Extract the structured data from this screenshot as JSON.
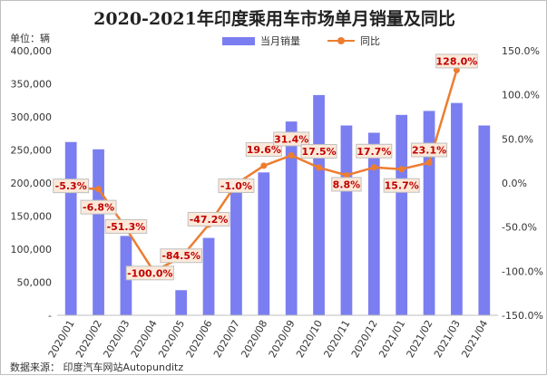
{
  "chart_data": {
    "type": "bar",
    "title": "2020-2021年印度乘用车市场单月销量及同比",
    "unit_label": "单位：辆",
    "source_label": "数据来源：  印度汽车网站Autopunditz",
    "categories": [
      "2020/01",
      "2020/02",
      "2020/03",
      "2020/04",
      "2020/05",
      "2020/06",
      "2020/07",
      "2020/08",
      "2020/09",
      "2020/10",
      "2020/11",
      "2020/12",
      "2021/01",
      "2021/02",
      "2021/03",
      "2021/04"
    ],
    "series": [
      {
        "name": "当月销量",
        "type": "bar",
        "axis": "left",
        "values": [
          262000,
          251000,
          120000,
          0,
          38000,
          117000,
          189000,
          216000,
          293000,
          333000,
          287000,
          276000,
          303000,
          309000,
          321000,
          287000
        ]
      },
      {
        "name": "同比",
        "type": "line",
        "axis": "right",
        "values": [
          -5.3,
          -6.8,
          -51.3,
          -100.0,
          -84.5,
          -47.2,
          -1.0,
          19.6,
          31.4,
          17.5,
          8.8,
          17.7,
          15.7,
          23.1,
          128.0,
          null
        ],
        "labels": [
          "-5.3%",
          "-6.8%",
          "-51.3%",
          "-100.0%",
          "-84.5%",
          "-47.2%",
          "-1.0%",
          "19.6%",
          "31.4%",
          "17.5%",
          "8.8%",
          "17.7%",
          "15.7%",
          "23.1%",
          "128.0%",
          ""
        ]
      }
    ],
    "y_left": {
      "min": 0,
      "max": 400000,
      "ticks": [
        0,
        50000,
        100000,
        150000,
        200000,
        250000,
        300000,
        350000,
        400000
      ],
      "tick_labels": [
        "-",
        "50,000",
        "100,000",
        "150,000",
        "200,000",
        "250,000",
        "300,000",
        "350,000",
        "400,000"
      ]
    },
    "y_right": {
      "min": -150,
      "max": 150,
      "ticks": [
        -150,
        -100,
        -50,
        0,
        50,
        100,
        150
      ],
      "tick_labels": [
        "-150.0%",
        "-100.0%",
        "-50.0%",
        "0.0%",
        "50.0%",
        "100.0%",
        "150.0%"
      ]
    },
    "grid": false,
    "legend_position": "top-center",
    "colors": {
      "bar": "#7b7ef0",
      "line": "#ed7d31",
      "label_text": "#c00000",
      "label_bg": "#fde9d9",
      "label_border": "#bfbfbf"
    }
  }
}
